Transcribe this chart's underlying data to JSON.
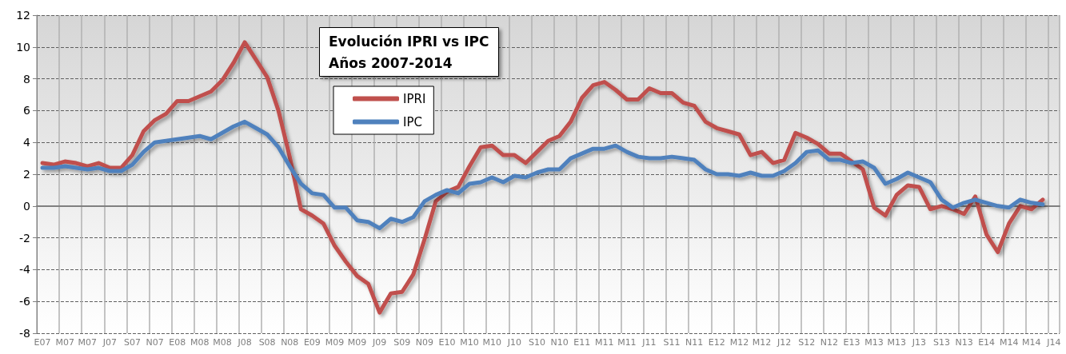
{
  "chart_data": {
    "type": "line",
    "title": "Evolución IPRI vs IPC\nAños 2007-2014",
    "categories": [
      "E07",
      null,
      "M07",
      null,
      "M07",
      null,
      "J07",
      null,
      "S07",
      null,
      "N07",
      null,
      "E08",
      null,
      "M08",
      null,
      "M08",
      null,
      "J08",
      null,
      "S08",
      null,
      "N08",
      null,
      "E09",
      null,
      "M09",
      null,
      "M09",
      null,
      "J09",
      null,
      "S09",
      null,
      "N09",
      null,
      "E10",
      null,
      "M10",
      null,
      "M10",
      null,
      "J10",
      null,
      "S10",
      null,
      "N10",
      null,
      "E11",
      null,
      "M11",
      null,
      "M11",
      null,
      "J11",
      null,
      "S11",
      null,
      "N11",
      null,
      "E12",
      null,
      "M12",
      null,
      "M12",
      null,
      "J12",
      null,
      "S12",
      null,
      "N12",
      null,
      "E13",
      null,
      "M13",
      null,
      "M13",
      null,
      "J13",
      null,
      "S13",
      null,
      "N13",
      null,
      "E14",
      null,
      "M14",
      null,
      "M14",
      null,
      "J14"
    ],
    "series": [
      {
        "name": "IPRI",
        "color": "#c0504d",
        "values": [
          2.7,
          2.6,
          2.8,
          2.7,
          2.5,
          2.7,
          2.4,
          2.4,
          3.2,
          4.7,
          5.4,
          5.8,
          6.6,
          6.6,
          6.9,
          7.2,
          7.9,
          9.0,
          10.3,
          9.2,
          8.1,
          6.0,
          3.1,
          -0.2,
          -0.6,
          -1.1,
          -2.5,
          -3.5,
          -4.4,
          -4.9,
          -6.7,
          -5.5,
          -5.4,
          -4.3,
          -2.1,
          0.3,
          0.9,
          1.2,
          2.5,
          3.7,
          3.8,
          3.2,
          3.2,
          2.7,
          3.4,
          4.1,
          4.4,
          5.3,
          6.8,
          7.6,
          7.8,
          7.3,
          6.7,
          6.7,
          7.4,
          7.1,
          7.1,
          6.5,
          6.3,
          5.3,
          4.9,
          4.7,
          4.5,
          3.2,
          3.4,
          2.7,
          2.9,
          4.6,
          4.3,
          3.9,
          3.3,
          3.3,
          2.8,
          2.3,
          -0.1,
          -0.6,
          0.7,
          1.3,
          1.2,
          -0.2,
          0.0,
          -0.2,
          -0.5,
          0.6,
          -1.8,
          -2.9,
          -1.1,
          0.0,
          -0.2,
          0.4,
          null
        ]
      },
      {
        "name": "IPC",
        "color": "#4f81bd",
        "values": [
          2.4,
          2.4,
          2.5,
          2.4,
          2.3,
          2.4,
          2.2,
          2.2,
          2.6,
          3.4,
          4.0,
          4.1,
          4.2,
          4.3,
          4.4,
          4.2,
          4.6,
          5.0,
          5.3,
          4.9,
          4.5,
          3.7,
          2.5,
          1.4,
          0.8,
          0.7,
          -0.1,
          -0.1,
          -0.9,
          -1.0,
          -1.4,
          -0.8,
          -1.0,
          -0.7,
          0.3,
          0.7,
          1.0,
          0.8,
          1.4,
          1.5,
          1.8,
          1.5,
          1.9,
          1.8,
          2.1,
          2.3,
          2.3,
          3.0,
          3.3,
          3.6,
          3.6,
          3.8,
          3.4,
          3.1,
          3.0,
          3.0,
          3.1,
          3.0,
          2.9,
          2.3,
          2.0,
          2.0,
          1.9,
          2.1,
          1.9,
          1.9,
          2.2,
          2.7,
          3.4,
          3.5,
          2.9,
          2.9,
          2.7,
          2.8,
          2.4,
          1.4,
          1.7,
          2.1,
          1.8,
          1.5,
          0.4,
          -0.1,
          0.2,
          0.4,
          0.2,
          0.0,
          -0.1,
          0.4,
          0.2,
          0.1,
          null
        ]
      }
    ],
    "ylim": [
      -8,
      12
    ],
    "yticks": [
      -8,
      -6,
      -4,
      -2,
      0,
      2,
      4,
      6,
      8,
      10,
      12
    ],
    "grid": true,
    "legend": "top left",
    "marker": "none",
    "line_style": "solid"
  }
}
